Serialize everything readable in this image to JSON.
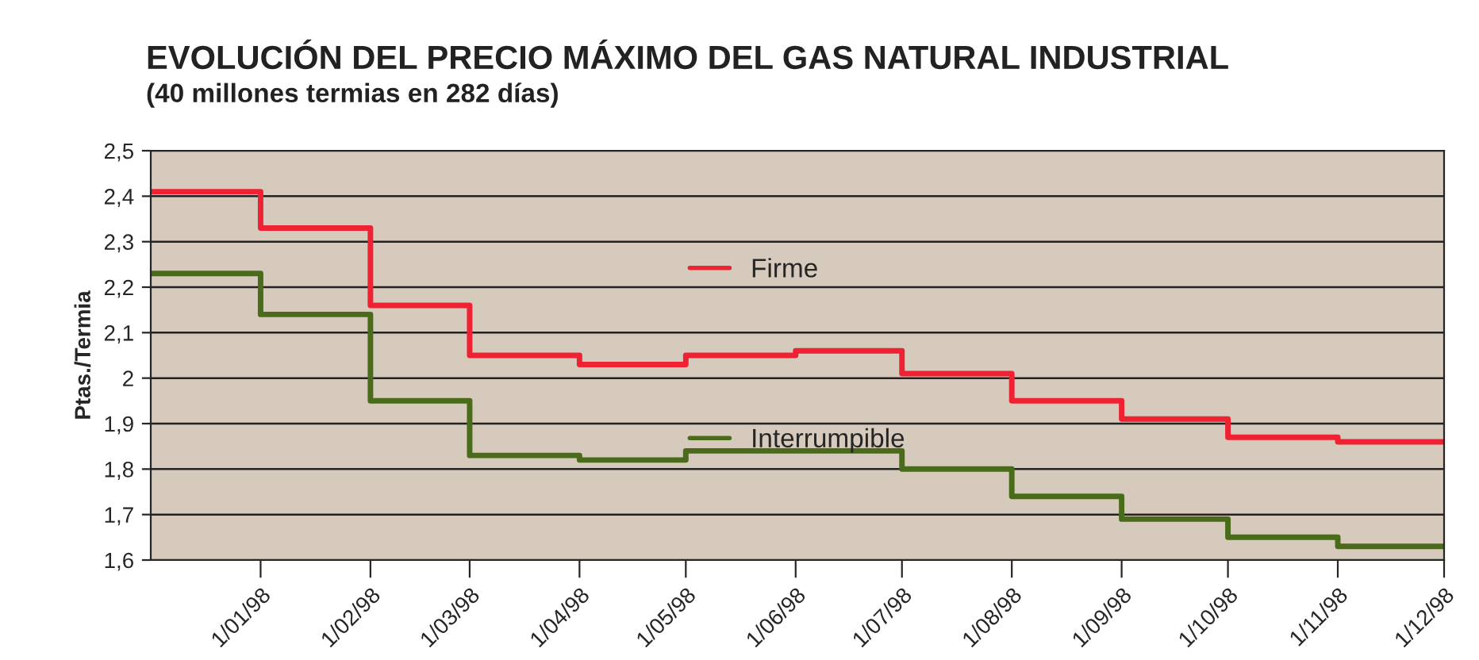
{
  "chart_data": {
    "type": "step",
    "title": "EVOLUCIÓN DEL PRECIO MÁXIMO DEL GAS NATURAL INDUSTRIAL",
    "subtitle": "(40 millones termias en 282 días)",
    "ylabel": "Ptas./Termia",
    "x": [
      "1997-12-01",
      "1998-01-01",
      "1998-02-01",
      "1998-03-01",
      "1998-04-01",
      "1998-05-01",
      "1998-06-01",
      "1998-07-01",
      "1998-08-01",
      "1998-09-01",
      "1998-10-01",
      "1998-11-01",
      "1998-12-01"
    ],
    "series": [
      {
        "name": "Firme",
        "color": "#ee2233",
        "values": [
          2.41,
          2.33,
          2.16,
          2.05,
          2.03,
          2.05,
          2.06,
          2.01,
          1.95,
          1.91,
          1.87,
          1.86,
          1.86
        ]
      },
      {
        "name": "Interrumpible",
        "color": "#4a6b1a",
        "values": [
          2.23,
          2.14,
          1.95,
          1.83,
          1.82,
          1.84,
          1.84,
          1.8,
          1.74,
          1.69,
          1.65,
          1.63,
          1.63
        ]
      }
    ],
    "xlim": [
      "1997-12-01",
      "1998-12-01"
    ],
    "xticks": [
      {
        "value": "1998-01-01",
        "label": "1/01/98"
      },
      {
        "value": "1998-02-01",
        "label": "1/02/98"
      },
      {
        "value": "1998-03-01",
        "label": "1/03/98"
      },
      {
        "value": "1998-04-01",
        "label": "1/04/98"
      },
      {
        "value": "1998-05-01",
        "label": "1/05/98"
      },
      {
        "value": "1998-06-01",
        "label": "1/06/98"
      },
      {
        "value": "1998-07-01",
        "label": "1/07/98"
      },
      {
        "value": "1998-08-01",
        "label": "1/08/98"
      },
      {
        "value": "1998-09-01",
        "label": "1/09/98"
      },
      {
        "value": "1998-10-01",
        "label": "1/10/98"
      },
      {
        "value": "1998-11-01",
        "label": "1/11/98"
      },
      {
        "value": "1998-12-01",
        "label": "1/12/98"
      }
    ],
    "ylim": [
      1.6,
      2.5
    ],
    "yticks": [
      {
        "value": 1.6,
        "label": "1,6"
      },
      {
        "value": 1.7,
        "label": "1,7"
      },
      {
        "value": 1.8,
        "label": "1,8"
      },
      {
        "value": 1.9,
        "label": "1,9"
      },
      2,
      {
        "value": 2.1,
        "label": "2,1"
      },
      {
        "value": 2.2,
        "label": "2,2"
      },
      {
        "value": 2.3,
        "label": "2,3"
      },
      {
        "value": 2.4,
        "label": "2,4"
      },
      {
        "value": 2.5,
        "label": "2,5"
      }
    ],
    "grid": "y",
    "legend": "center",
    "line_style": "solid"
  }
}
